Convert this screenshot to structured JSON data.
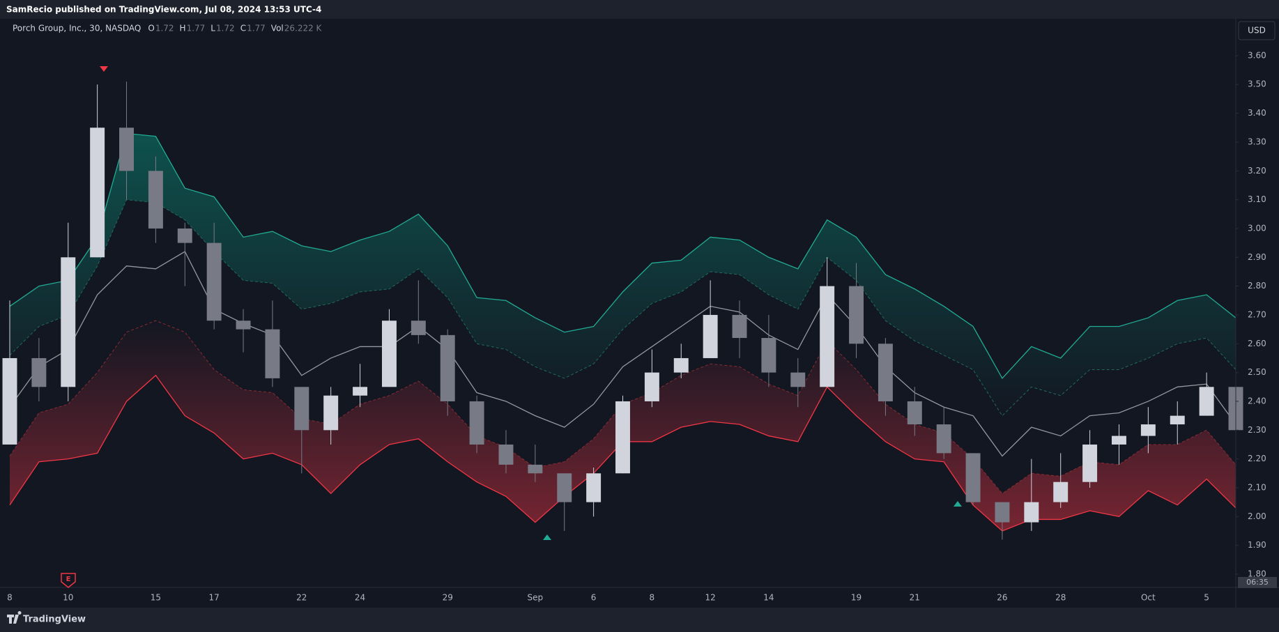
{
  "header": {
    "publisher": "SamRecio published on TradingView.com, Jul 08, 2024 13:53 UTC-4"
  },
  "legend": {
    "symbol": "Porch Group, Inc., 30, NASDAQ",
    "fields": [
      {
        "key": "O",
        "value": "1.72"
      },
      {
        "key": "H",
        "value": "1.77"
      },
      {
        "key": "L",
        "value": "1.72"
      },
      {
        "key": "C",
        "value": "1.77"
      },
      {
        "key": "Vol",
        "value": "26.222 K"
      }
    ]
  },
  "currency": "USD",
  "countdown": "06:35",
  "earnings_marker": "E",
  "footer_brand": "TradingView",
  "chart_data": {
    "type": "candlestick",
    "categories": [
      "8",
      null,
      "10",
      null,
      null,
      "15",
      null,
      "17",
      null,
      null,
      "22",
      null,
      "24",
      null,
      null,
      "29",
      null,
      null,
      "Sep",
      null,
      "6",
      null,
      "8",
      null,
      "12",
      null,
      "14",
      null,
      null,
      "19",
      null,
      "21",
      null,
      null,
      "26",
      null,
      "28",
      null,
      null,
      "Oct",
      null,
      "5",
      null
    ],
    "ylim": [
      1.754,
      3.728
    ],
    "yticks": [
      {
        "value": 1.8,
        "label": "1.80"
      },
      {
        "value": 1.9,
        "label": "1.90"
      },
      {
        "value": 2.0,
        "label": "2.00"
      },
      {
        "value": 2.1,
        "label": "2.10"
      },
      {
        "value": 2.2,
        "label": "2.20"
      },
      {
        "value": 2.3,
        "label": "2.30"
      },
      {
        "value": 2.4,
        "label": "2.40"
      },
      {
        "value": 2.5,
        "label": "2.50"
      },
      {
        "value": 2.6,
        "label": "2.60"
      },
      {
        "value": 2.7,
        "label": "2.70"
      },
      {
        "value": 2.8,
        "label": "2.80"
      },
      {
        "value": 2.9,
        "label": "2.90"
      },
      {
        "value": 3.0,
        "label": "3.00"
      },
      {
        "value": 3.1,
        "label": "3.10"
      },
      {
        "value": 3.2,
        "label": "3.20"
      },
      {
        "value": 3.3,
        "label": "3.30"
      },
      {
        "value": 3.4,
        "label": "3.40"
      },
      {
        "value": 3.5,
        "label": "3.50"
      },
      {
        "value": 3.6,
        "label": "3.60"
      }
    ],
    "grid": false,
    "up_color": "#d1d4dc",
    "down_color": "#787b86",
    "open": [
      2.25,
      2.55,
      2.45,
      2.9,
      3.35,
      3.2,
      3.0,
      2.95,
      2.68,
      2.65,
      2.45,
      2.3,
      2.42,
      2.45,
      2.68,
      2.63,
      2.4,
      2.25,
      2.18,
      2.15,
      2.05,
      2.15,
      2.4,
      2.5,
      2.55,
      2.7,
      2.62,
      2.5,
      2.45,
      2.8,
      2.6,
      2.4,
      2.32,
      2.22,
      2.05,
      1.98,
      2.05,
      2.12,
      2.25,
      2.28,
      2.32,
      2.35,
      2.45
    ],
    "high": [
      2.75,
      2.62,
      3.02,
      3.5,
      3.51,
      3.25,
      3.02,
      3.02,
      2.72,
      2.75,
      2.45,
      2.45,
      2.53,
      2.72,
      2.82,
      2.65,
      2.42,
      2.3,
      2.25,
      2.15,
      2.17,
      2.42,
      2.58,
      2.6,
      2.82,
      2.75,
      2.7,
      2.55,
      2.9,
      2.88,
      2.62,
      2.45,
      2.38,
      2.22,
      2.05,
      2.2,
      2.22,
      2.3,
      2.32,
      2.38,
      2.4,
      2.5,
      2.48
    ],
    "low": [
      2.25,
      2.4,
      2.4,
      2.9,
      3.1,
      2.95,
      2.8,
      2.65,
      2.57,
      2.45,
      2.15,
      2.25,
      2.38,
      2.45,
      2.6,
      2.35,
      2.22,
      2.15,
      2.12,
      1.95,
      2.0,
      2.15,
      2.38,
      2.48,
      2.55,
      2.55,
      2.45,
      2.38,
      2.45,
      2.55,
      2.35,
      2.28,
      2.2,
      2.04,
      1.92,
      1.95,
      2.03,
      2.1,
      2.18,
      2.22,
      2.25,
      2.35,
      2.25
    ],
    "close": [
      2.55,
      2.45,
      2.9,
      3.35,
      3.2,
      3.0,
      2.95,
      2.68,
      2.65,
      2.48,
      2.3,
      2.42,
      2.45,
      2.68,
      2.63,
      2.4,
      2.25,
      2.18,
      2.15,
      2.05,
      2.15,
      2.4,
      2.5,
      2.55,
      2.7,
      2.62,
      2.5,
      2.45,
      2.8,
      2.6,
      2.4,
      2.32,
      2.22,
      2.05,
      1.98,
      2.05,
      2.12,
      2.25,
      2.28,
      2.32,
      2.35,
      2.45,
      2.3
    ],
    "series": [
      {
        "color": "#22ab94",
        "style": "solid",
        "fill": "#089981",
        "values": [
          2.73,
          2.8,
          2.82,
          2.97,
          3.33,
          3.32,
          3.14,
          3.11,
          2.97,
          2.99,
          2.94,
          2.92,
          2.96,
          2.99,
          3.05,
          2.94,
          2.76,
          2.75,
          2.69,
          2.64,
          2.66,
          2.78,
          2.88,
          2.89,
          2.97,
          2.96,
          2.9,
          2.86,
          3.03,
          2.97,
          2.84,
          2.79,
          2.73,
          2.66,
          2.48,
          2.59,
          2.55,
          2.66,
          2.66,
          2.69,
          2.75,
          2.77,
          2.69
        ]
      },
      {
        "color": "#1f6b5f",
        "style": "dashed",
        "values": [
          2.56,
          2.66,
          2.7,
          2.87,
          3.1,
          3.09,
          3.03,
          2.92,
          2.82,
          2.81,
          2.72,
          2.74,
          2.78,
          2.79,
          2.86,
          2.76,
          2.6,
          2.58,
          2.52,
          2.48,
          2.53,
          2.65,
          2.74,
          2.78,
          2.85,
          2.84,
          2.77,
          2.72,
          2.9,
          2.82,
          2.68,
          2.61,
          2.56,
          2.51,
          2.35,
          2.45,
          2.42,
          2.51,
          2.51,
          2.55,
          2.6,
          2.62,
          2.51
        ]
      },
      {
        "color": "#9598a1",
        "style": "solid",
        "values": [
          2.38,
          2.52,
          2.58,
          2.77,
          2.87,
          2.86,
          2.92,
          2.72,
          2.67,
          2.63,
          2.49,
          2.55,
          2.59,
          2.59,
          2.66,
          2.58,
          2.43,
          2.4,
          2.35,
          2.31,
          2.39,
          2.52,
          2.59,
          2.66,
          2.73,
          2.71,
          2.63,
          2.58,
          2.77,
          2.66,
          2.52,
          2.43,
          2.38,
          2.35,
          2.21,
          2.31,
          2.28,
          2.35,
          2.36,
          2.4,
          2.45,
          2.46,
          2.32
        ]
      },
      {
        "color": "#8a2b33",
        "style": "dashed",
        "values": [
          2.21,
          2.36,
          2.39,
          2.5,
          2.64,
          2.68,
          2.64,
          2.51,
          2.44,
          2.43,
          2.34,
          2.32,
          2.39,
          2.42,
          2.47,
          2.39,
          2.28,
          2.24,
          2.17,
          2.19,
          2.27,
          2.39,
          2.43,
          2.49,
          2.53,
          2.52,
          2.46,
          2.42,
          2.61,
          2.51,
          2.39,
          2.32,
          2.29,
          2.2,
          2.08,
          2.15,
          2.14,
          2.19,
          2.18,
          2.25,
          2.25,
          2.3,
          2.18
        ]
      },
      {
        "color": "#f23645",
        "style": "solid",
        "fill": "#f23645",
        "values": [
          2.04,
          2.19,
          2.2,
          2.22,
          2.4,
          2.49,
          2.35,
          2.29,
          2.2,
          2.22,
          2.18,
          2.08,
          2.18,
          2.25,
          2.27,
          2.19,
          2.12,
          2.07,
          1.98,
          2.07,
          2.15,
          2.26,
          2.26,
          2.31,
          2.33,
          2.32,
          2.28,
          2.26,
          2.45,
          2.35,
          2.26,
          2.2,
          2.19,
          2.04,
          1.95,
          1.99,
          1.99,
          2.02,
          2.0,
          2.09,
          2.04,
          2.13,
          2.03
        ]
      }
    ]
  }
}
